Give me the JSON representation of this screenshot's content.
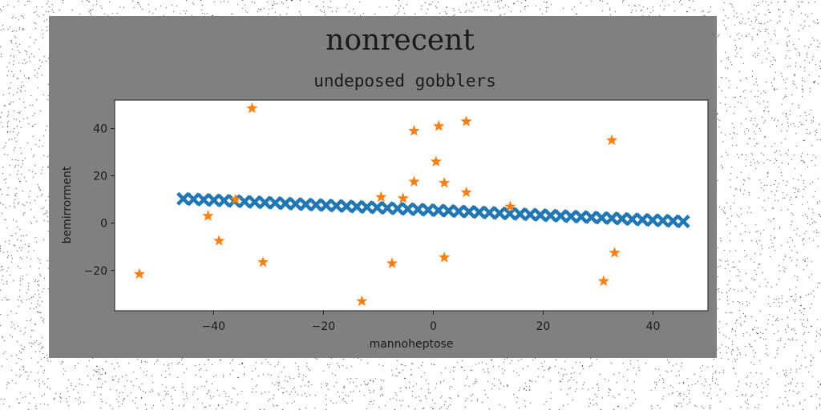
{
  "colors": {
    "figure_background": "#808080",
    "plot_background": "#ffffff",
    "series_1": "#1f77b4",
    "series_2": "#ff7f0e"
  },
  "chart_data": {
    "type": "scatter",
    "title": "nonrecent",
    "subtitle": "undeposed gobblers",
    "xlabel": "mannoheptose",
    "ylabel": "bemirrorment",
    "xlim": [
      -58,
      50
    ],
    "ylim": [
      -37,
      52
    ],
    "xticks": [
      -40,
      -20,
      0,
      20,
      40
    ],
    "yticks": [
      -20,
      0,
      20,
      40
    ],
    "grid": false,
    "legend": "none",
    "series": [
      {
        "marker": "X",
        "color": "#1f77b4",
        "x_range": [
          -45.5,
          45.5
        ],
        "y_range": [
          10.3,
          0.7
        ],
        "count": 50
      },
      {
        "marker": "star",
        "color": "#ff7f0e",
        "points": [
          [
            -53.5,
            -21.5
          ],
          [
            -41,
            3
          ],
          [
            -39,
            -7.5
          ],
          [
            -36,
            10
          ],
          [
            -33,
            48.5
          ],
          [
            -31,
            -16.5
          ],
          [
            -13,
            -33
          ],
          [
            -9.5,
            11
          ],
          [
            -7.5,
            -17
          ],
          [
            -5.5,
            10.5
          ],
          [
            -3.5,
            17.5
          ],
          [
            -3.5,
            39
          ],
          [
            0.5,
            26
          ],
          [
            1,
            41
          ],
          [
            2,
            -14.5
          ],
          [
            2,
            17
          ],
          [
            6,
            13
          ],
          [
            6,
            43
          ],
          [
            14,
            7
          ],
          [
            31,
            -24.5
          ],
          [
            32.5,
            35
          ],
          [
            33,
            -12.5
          ]
        ]
      }
    ]
  }
}
